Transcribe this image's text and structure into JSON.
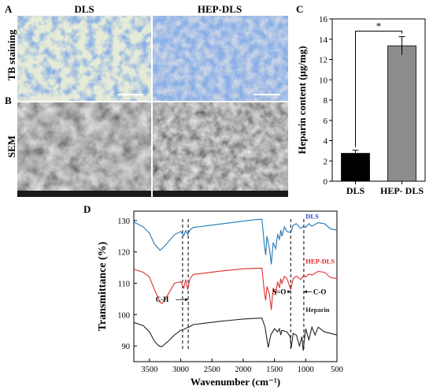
{
  "panels": {
    "A": "A",
    "B": "B",
    "C": "C",
    "D": "D"
  },
  "columns": [
    "DLS",
    "HEP-DLS"
  ],
  "rows": [
    "TB staining",
    "SEM"
  ],
  "colors": {
    "bar_dls": "#000000",
    "bar_hep": "#8c8c8c",
    "dls_line": "#1f77b4",
    "hep_dls_line": "#e03030",
    "heparin_line": "#222222",
    "dls_label": "#2a3fd4",
    "hep_dls_label": "#e02020",
    "tb_background": "#e6ebd8",
    "tb_stain": "#3f6fc6",
    "sem_tone": "#6e6e6e"
  },
  "chart_data": [
    {
      "id": "C",
      "type": "bar",
      "categories": [
        "DLS",
        "HEP- DLS"
      ],
      "values": [
        2.75,
        13.35
      ],
      "errors": [
        0.3,
        0.9
      ],
      "ylabel": "Heparin content (μg/mg)",
      "ylim": [
        0,
        16
      ],
      "yticks": [
        "0",
        "2",
        "4",
        "6",
        "8",
        "10",
        "12",
        "14",
        "16"
      ],
      "significance": "*"
    },
    {
      "id": "D",
      "type": "line",
      "xlabel": "Wavenumber (cm⁻¹)",
      "ylabel": "Transmittance (%)",
      "xlim": [
        3750,
        500
      ],
      "ylim": [
        85,
        133
      ],
      "xticks": [
        "3500",
        "3000",
        "2500",
        "2000",
        "1500",
        "1000",
        "500"
      ],
      "yticks": [
        "90",
        "100",
        "110",
        "120",
        "130"
      ],
      "series": [
        {
          "name": "DLS",
          "x": [
            3750,
            3600,
            3500,
            3420,
            3330,
            3250,
            3100,
            3000,
            2950,
            2920,
            2890,
            2850,
            2800,
            2600,
            2400,
            2200,
            2000,
            1800,
            1700,
            1660,
            1640,
            1620,
            1580,
            1550,
            1520,
            1480,
            1450,
            1420,
            1400,
            1380,
            1340,
            1300,
            1240,
            1200,
            1150,
            1080,
            1030,
            1000,
            950,
            900,
            800,
            700,
            600,
            500
          ],
          "y": [
            129.5,
            128,
            126,
            122.5,
            120.5,
            122,
            125.5,
            126.5,
            125.2,
            126.8,
            125.5,
            127,
            127.8,
            128.3,
            128.8,
            129.3,
            129.8,
            130.3,
            130.4,
            122,
            119,
            125,
            121,
            116,
            123,
            121,
            125.5,
            124,
            127,
            125,
            128,
            126.5,
            126.2,
            128.5,
            129,
            127.5,
            128.3,
            127.8,
            129,
            128.2,
            129.3,
            129,
            127.3,
            127
          ]
        },
        {
          "name": "HEP-DLS",
          "x": [
            3750,
            3600,
            3500,
            3420,
            3330,
            3300,
            3200,
            3100,
            3000,
            2950,
            2920,
            2890,
            2850,
            2800,
            2600,
            2400,
            2200,
            2000,
            1800,
            1700,
            1660,
            1640,
            1620,
            1580,
            1550,
            1520,
            1480,
            1450,
            1420,
            1400,
            1380,
            1340,
            1300,
            1240,
            1200,
            1150,
            1080,
            1030,
            1000,
            950,
            900,
            800,
            700,
            600,
            500
          ],
          "y": [
            114.5,
            113.5,
            112,
            108,
            104,
            103.5,
            106.5,
            110,
            110.5,
            108.5,
            111.2,
            108,
            111.5,
            112.8,
            113.3,
            113.8,
            114.2,
            114.6,
            114.8,
            114.8,
            107,
            104.5,
            109,
            106.5,
            101.5,
            108.5,
            106.5,
            110.5,
            108.5,
            111.5,
            110,
            112.2,
            111.5,
            108,
            111.5,
            112.3,
            111.2,
            112.5,
            112,
            113,
            112.6,
            113.8,
            113.5,
            111.8,
            111.5
          ]
        },
        {
          "name": "Heparin",
          "x": [
            3750,
            3600,
            3500,
            3420,
            3350,
            3300,
            3200,
            3100,
            3000,
            2950,
            2900,
            2850,
            2800,
            2600,
            2400,
            2200,
            2000,
            1800,
            1700,
            1650,
            1620,
            1600,
            1560,
            1500,
            1450,
            1420,
            1400,
            1380,
            1300,
            1250,
            1230,
            1200,
            1150,
            1100,
            1060,
            1040,
            1000,
            950,
            900,
            850,
            800,
            700,
            600,
            500
          ],
          "y": [
            97.5,
            96.5,
            94.5,
            91.5,
            90,
            89.8,
            91.5,
            93.5,
            95,
            95.3,
            95.8,
            96.2,
            96.8,
            97.3,
            97.8,
            98.2,
            98.6,
            98.8,
            98.9,
            96,
            92,
            89.5,
            93.5,
            95.5,
            94.5,
            95.5,
            93.5,
            95,
            94.5,
            93,
            89.5,
            94,
            93.5,
            90,
            93,
            88.5,
            95.5,
            92,
            96,
            93.5,
            96,
            94.5,
            94,
            93.5
          ]
        }
      ],
      "annotations": [
        "C-H",
        "S=O",
        "C-O"
      ],
      "dashed_markers_x": [
        2970,
        2880,
        1240,
        1030
      ]
    }
  ]
}
